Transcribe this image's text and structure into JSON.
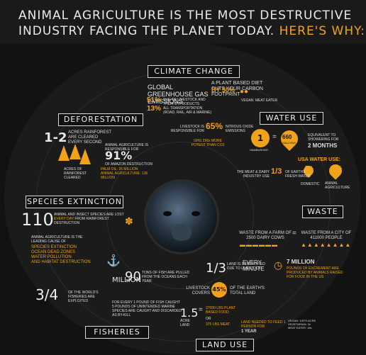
{
  "header": {
    "line1": "ANIMAL AGRICULTURE IS THE MOST DESTRUCTIVE",
    "line2": "INDUSTRY FACING THE PLANET TODAY.",
    "line2_accent": "HERE'S WHY:"
  },
  "sections": {
    "climate": "CLIMATE CHANGE",
    "deforestation": "DEFORESTATION",
    "water": "WATER USE",
    "species": "SPECIES EXTINCTION",
    "waste": "WASTE",
    "fisheries": "FISHERIES",
    "land": "LAND USE"
  },
  "climate": {
    "ghg": "GLOBAL GREENHOUSE GAS EMISSIONS",
    "plant": "A PLANT BASED DIET CUTS YOUR CARBON FOOTPRINT",
    "plant_pct": "BY 50%",
    "pct51": "51%",
    "pct51_text": "DUE TO LIVESTOCK AND THEIR BYPRODUCTS",
    "pct13": "13%",
    "pct13_text": "ALL TRANSPORTATION (ROAD, RAIL, AIR & MARINE)",
    "vegan": "VEGAN",
    "meat_eater": "MEAT EATER",
    "nox_a": "LIVESTOCK IS",
    "nox_b": "RESPONSIBLE FOR",
    "nox_pct": "65%",
    "nox_c": "NITROUS OXIDE EMISSIONS",
    "gwp": "GHG 296x MORE POTENT THAN CO2"
  },
  "deforestation": {
    "rate": "1-2",
    "rate_text": "ACRES RAINFOREST ARE CLEARED EVERY SECOND",
    "ag": "ANIMAL AGRICULTURE IS RESPONSIBLE FOR",
    "pct": "91%",
    "pct_text": "OF AMAZON DESTRUCTION",
    "acres_a": "ACRES OF RAINFOREST CLEARED",
    "palm": "PALM OIL: 26 MILLION",
    "animal": "ANIMAL AGRICULTURE: 136 MILLION"
  },
  "water": {
    "burger": "1",
    "burger_label": "HAMBURGER",
    "gallons": "660",
    "gallons_label": "GALLONS",
    "equivalent": "EQUIVALENT TO SHOWERING FOR",
    "months": "2 MONTHS",
    "usa": "USA WATER USE:",
    "domestic_pct": "5%",
    "domestic": "DOMESTIC",
    "ag_pct": "55%",
    "ag": "ANIMAL AGRICULTURE",
    "meat_dairy": "THE MEAT & DAIRY INDUSTRY USE",
    "fraction": "1/3",
    "fresh": "OF EARTHS FRESH WATER"
  },
  "species": {
    "count": "110",
    "count_text_a": "ANIMAL AND INSECT SPECIES ARE LOST",
    "every_day": "EVERY DAY",
    "count_text_b": "FROM RAINFOREST DESTRUCTION",
    "leading": "ANIMAL AGRICULTURE IS THE LEADING CAUSE OF",
    "causes": "SPECIES EXTINCTION OCEAN DEAD ZONES WATER POLLUTION",
    "habitat": "AND HABITAT DESTRUCTION"
  },
  "waste": {
    "farm": "WASTE FROM A FARM OF 2500 DAIRY COWS",
    "city": "WASTE FROM A CITY OF 411000 PEOPLE",
    "every_minute": "EVERY MINUTE",
    "million": "7 MILLION",
    "million_text": "POUNDS OF EXCREMENT ARE PRODUCED BY ANIMALS RAISED FOR FOOD IN THE US"
  },
  "fisheries": {
    "tons": "90",
    "tons_text": "TONS OF FISH ARE PULLED FROM THE OCEANS EACH YEAR",
    "million": "MILLION",
    "frac": "3/4",
    "frac_text": "OF THE WORLD'S FISHERIES ARE EXPLOITED",
    "bycatch": "FOR EVERY 1 POUND OF FISH CAUGHT 5 POUNDS OF UNINTENDED MARINE SPECIES ARE CAUGHT AND DISCARDED AS BY-KILL"
  },
  "land": {
    "third": "1/3",
    "third_text": "LAND IS DESERTIFIED DUE TO LIVESTOCK",
    "covers": "LIVESTOCK COVERS",
    "pct": "45%",
    "pct_text": "OF THE EARTH'S TOTAL LAND",
    "acre": "1.5",
    "acre_label": "ACRE LAND",
    "lbs_plant": "37000 LBS PLANT BASED FOOD",
    "or": "OR",
    "lbs_meat": "375 LBS MEAT",
    "needed": "LAND NEEDED TO FEED 1 PERSON FOR",
    "year": "1 YEAR",
    "vegan": "VEGAN: 1/6TH ACRE",
    "vegetarian": "VEGETARIAN: 3x",
    "meat_eater": "MEAT EATER: 18x"
  }
}
